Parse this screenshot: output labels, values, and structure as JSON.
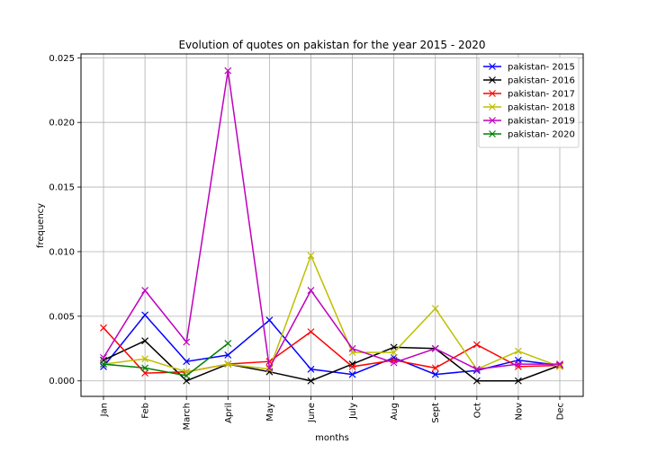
{
  "chart_data": {
    "type": "line",
    "title": "Evolution of quotes on pakistan for the year 2015 - 2020",
    "xlabel": "months",
    "ylabel": "frequency",
    "categories": [
      "Jan",
      "Feb",
      "March",
      "April",
      "May",
      "June",
      "July",
      "Aug",
      "Sept",
      "Oct",
      "Nov",
      "Dec"
    ],
    "yticks": [
      "0.000",
      "0.005",
      "0.010",
      "0.015",
      "0.020",
      "0.025"
    ],
    "ylim": [
      -0.0012,
      0.0253
    ],
    "grid": true,
    "legend_position": "top-right",
    "marker": "x",
    "series": [
      {
        "name": "pakistan- 2015",
        "color": "#0000ff",
        "values": [
          0.0011,
          0.0051,
          0.0015,
          0.002,
          0.0047,
          0.0009,
          0.0005,
          0.0018,
          0.0005,
          0.0008,
          0.0016,
          0.0012
        ]
      },
      {
        "name": "pakistan- 2016",
        "color": "#000000",
        "values": [
          0.0016,
          0.0031,
          0.0,
          0.0013,
          0.0007,
          0.0,
          0.0013,
          0.0026,
          0.0025,
          0.0,
          0.0,
          0.0012
        ]
      },
      {
        "name": "pakistan- 2017",
        "color": "#ff0000",
        "values": [
          0.0041,
          0.0006,
          0.0007,
          0.0013,
          0.0015,
          0.0038,
          0.0011,
          0.0016,
          0.001,
          0.0028,
          0.0011,
          0.0012
        ]
      },
      {
        "name": "pakistan- 2018",
        "color": "#bfbf00",
        "values": [
          0.0013,
          0.0017,
          0.0007,
          0.0013,
          0.0009,
          0.0097,
          0.0022,
          0.0022,
          0.0056,
          0.0009,
          0.0023,
          0.0011
        ]
      },
      {
        "name": "pakistan- 2019",
        "color": "#bf00bf",
        "values": [
          0.0018,
          0.007,
          0.003,
          0.024,
          0.001,
          0.007,
          0.0025,
          0.0014,
          0.0025,
          0.0009,
          0.0013,
          0.0013
        ]
      },
      {
        "name": "pakistan- 2020",
        "color": "#008000",
        "values": [
          0.0013,
          0.001,
          0.0004,
          0.0029,
          null,
          null,
          null,
          null,
          null,
          null,
          null,
          null
        ]
      }
    ]
  }
}
